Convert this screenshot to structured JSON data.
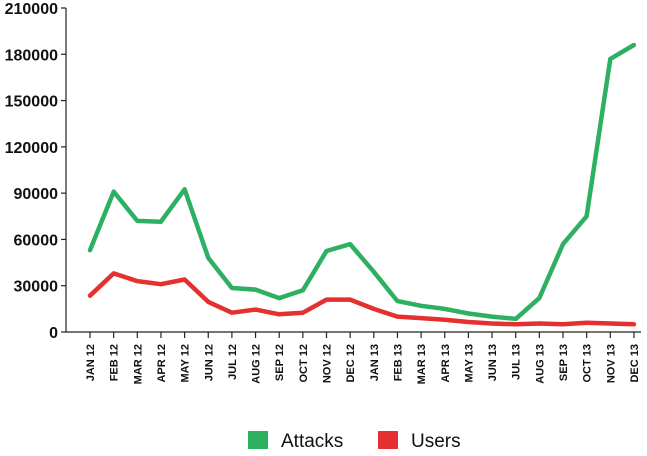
{
  "chart_data": {
    "type": "line",
    "title": "",
    "xlabel": "",
    "ylabel": "",
    "categories": [
      "JAN 12",
      "FEB 12",
      "MAR 12",
      "APR 12",
      "MAY 12",
      "JUN 12",
      "JUL 12",
      "AUG 12",
      "SEP 12",
      "OCT 12",
      "NOV 12",
      "DEC 12",
      "JAN 13",
      "FEB 13",
      "MAR 13",
      "APR 13",
      "MAY 13",
      "JUN 13",
      "JUL 13",
      "AUG 13",
      "SEP 13",
      "OCT 13",
      "NOV 13",
      "DEC 13"
    ],
    "yticks": [
      "0",
      "30000",
      "60000",
      "90000",
      "120000",
      "150000",
      "180000",
      "210000"
    ],
    "ylim": [
      0,
      210000
    ],
    "grid": false,
    "legend_position": "bottom",
    "series": [
      {
        "name": "Attacks",
        "color": "#2eb062",
        "values": [
          53000,
          91000,
          72000,
          71500,
          92500,
          48000,
          28500,
          27500,
          22000,
          27000,
          52500,
          57000,
          39000,
          20000,
          17000,
          15000,
          12000,
          10000,
          8500,
          22000,
          57000,
          75000,
          177000,
          186000
        ]
      },
      {
        "name": "Users",
        "color": "#e53030",
        "values": [
          23500,
          38000,
          33000,
          31000,
          34000,
          19500,
          12500,
          14500,
          11500,
          12500,
          21000,
          21000,
          15000,
          10000,
          9000,
          8000,
          6500,
          5500,
          5000,
          5500,
          5000,
          6000,
          5500,
          5000
        ]
      }
    ]
  }
}
